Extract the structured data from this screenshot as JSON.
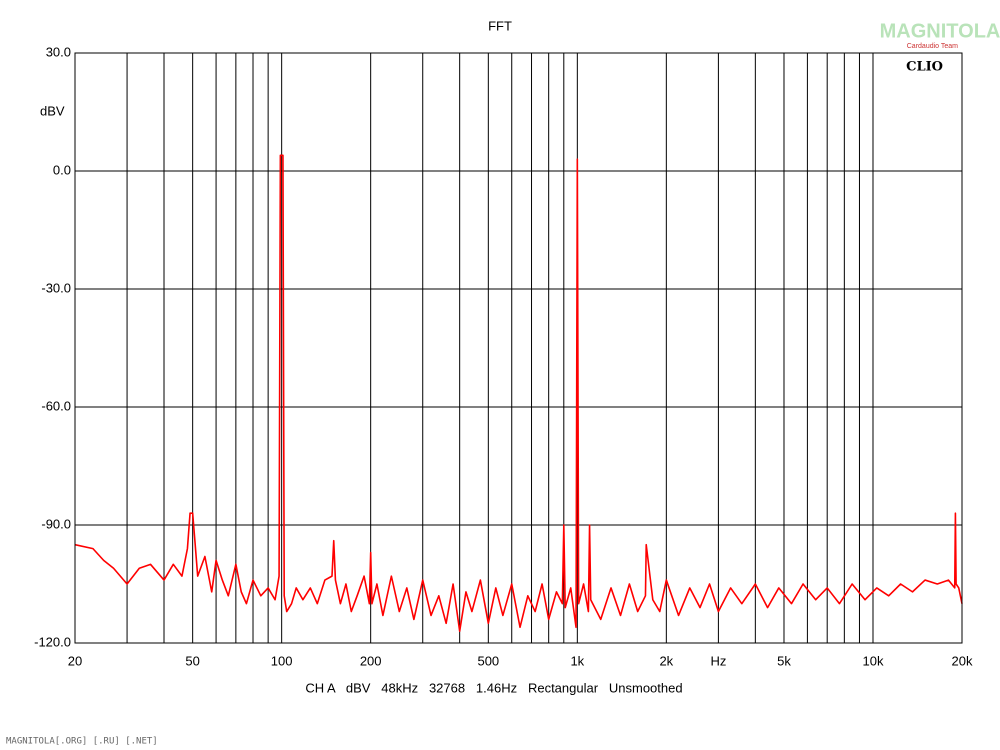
{
  "chart_data": {
    "type": "line",
    "title": "FFT",
    "y_label": "dBV",
    "x_label": "CH A   dBV   48kHz   32768   1.46Hz   Rectangular   Unsmoothed",
    "brand": "CLIO",
    "logo": "MAGNITOLA",
    "logo_subtitle": "Cardaudio Team",
    "footer": "MAGNITOLA[.ORG] [.RU] [.NET]",
    "xlog": true,
    "grid": true,
    "xlim": [
      20,
      20000
    ],
    "ylim": [
      -120,
      30
    ],
    "xticks": [
      20,
      50,
      100,
      200,
      500,
      {
        "value": 1000,
        "label": "1k"
      },
      {
        "value": 2000,
        "label": "2k"
      },
      {
        "value": 3000,
        "label": "Hz"
      },
      {
        "value": 5000,
        "label": "5k"
      },
      {
        "value": 10000,
        "label": "10k"
      },
      {
        "value": 20000,
        "label": "20k"
      }
    ],
    "xminor": [
      30,
      40,
      60,
      70,
      80,
      90,
      300,
      400,
      600,
      700,
      800,
      900,
      4000,
      6000,
      7000,
      8000,
      9000
    ],
    "yticks": [
      {
        "value": 30,
        "label": "30.0"
      },
      {
        "value": 0,
        "label": "0.0"
      },
      {
        "value": -30,
        "label": "-30.0"
      },
      {
        "value": -60,
        "label": "-60.0"
      },
      {
        "value": -90,
        "label": "-90.0"
      },
      {
        "value": -120,
        "label": "-120.0"
      }
    ],
    "x": [
      20,
      23,
      25,
      27,
      30,
      33,
      36,
      40,
      43,
      46,
      48,
      49,
      50,
      51,
      52,
      55,
      58,
      60,
      63,
      66,
      70,
      73,
      76,
      80,
      85,
      90,
      95,
      98,
      99,
      100,
      101,
      102,
      104,
      108,
      112,
      118,
      125,
      132,
      140,
      148,
      150,
      152,
      158,
      165,
      172,
      180,
      190,
      198,
      200,
      202,
      210,
      220,
      235,
      250,
      265,
      280,
      300,
      320,
      340,
      360,
      380,
      400,
      420,
      440,
      470,
      500,
      530,
      560,
      600,
      640,
      680,
      720,
      760,
      800,
      850,
      890,
      900,
      910,
      950,
      990,
      1000,
      1010,
      1050,
      1090,
      1100,
      1110,
      1200,
      1300,
      1400,
      1500,
      1600,
      1700,
      1710,
      1800,
      1900,
      2000,
      2200,
      2400,
      2600,
      2800,
      3000,
      3300,
      3600,
      4000,
      4400,
      4800,
      5300,
      5800,
      6400,
      7000,
      7700,
      8500,
      9400,
      10300,
      11300,
      12400,
      13600,
      15000,
      16500,
      18000,
      18900,
      19000,
      19100,
      19500,
      20000
    ],
    "series": [
      {
        "name": "CH A",
        "color": "#ff0000",
        "values": [
          -95,
          -96,
          -99,
          -101,
          -105,
          -101,
          -100,
          -104,
          -100,
          -103,
          -96,
          -87,
          -87,
          -95,
          -103,
          -98,
          -107,
          -99,
          -104,
          -108,
          -100,
          -107,
          -110,
          -104,
          -108,
          -106,
          -109,
          -103,
          4,
          4,
          4,
          -108,
          -112,
          -110,
          -106,
          -109,
          -106,
          -110,
          -104,
          -103,
          -94,
          -104,
          -110,
          -105,
          -112,
          -108,
          -103,
          -110,
          -97,
          -110,
          -105,
          -113,
          -103,
          -112,
          -106,
          -114,
          -104,
          -113,
          -108,
          -115,
          -105,
          -117,
          -107,
          -112,
          -104,
          -115,
          -106,
          -113,
          -105,
          -116,
          -108,
          -112,
          -105,
          -114,
          -107,
          -110,
          -90,
          -111,
          -106,
          -116,
          3,
          -110,
          -105,
          -112,
          -90,
          -109,
          -114,
          -106,
          -113,
          -105,
          -112,
          -108,
          -95,
          -109,
          -112,
          -104,
          -113,
          -106,
          -111,
          -105,
          -112,
          -106,
          -110,
          -105,
          -111,
          -106,
          -110,
          -105,
          -109,
          -106,
          -110,
          -105,
          -109,
          -106,
          -108,
          -105,
          -107,
          -104,
          -105,
          -104,
          -106,
          -87,
          -105,
          -106,
          -110
        ]
      }
    ]
  }
}
